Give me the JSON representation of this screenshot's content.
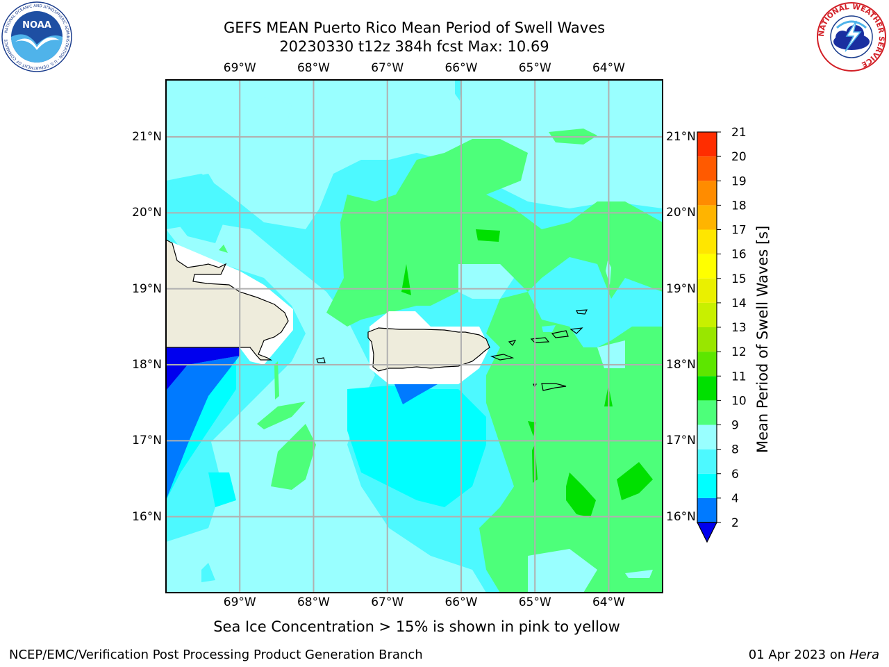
{
  "title": {
    "line1": "GEFS MEAN Puerto Rico Mean Period of Swell Waves",
    "line2": "20230330 t12z 384h fcst   Max: 10.69"
  },
  "map": {
    "lon_ticks": [
      "69°W",
      "68°W",
      "67°W",
      "66°W",
      "65°W",
      "64°W"
    ],
    "lat_ticks": [
      "21°N",
      "20°N",
      "19°N",
      "18°N",
      "17°N",
      "16°N"
    ],
    "lon_values": [
      -69,
      -68,
      -67,
      -66,
      -65,
      -64
    ],
    "lat_values": [
      21,
      20,
      19,
      18,
      17,
      16
    ],
    "lon_range": [
      -70.0,
      -63.27
    ],
    "lat_range": [
      15.0,
      21.75
    ],
    "land_color": "#eeecdc",
    "ocean_colors": {
      "2-4": "#007aff",
      "0-2": "#0000f0",
      "4-6": "#00ffff",
      "6-8": "#4df9ff",
      "8-9": "#99ffff",
      "9-10": "#4dff7a",
      "10-11": "#00e000"
    }
  },
  "colorbar": {
    "label": "Mean Period of Swell Waves [s]",
    "levels": [
      "2",
      "4",
      "6",
      "8",
      "9",
      "10",
      "11",
      "12",
      "13",
      "14",
      "15",
      "16",
      "17",
      "18",
      "19",
      "20",
      "21"
    ],
    "colors": [
      "#007aff",
      "#00ffff",
      "#4df9ff",
      "#99ffff",
      "#4dff7a",
      "#00e000",
      "#5de600",
      "#99e600",
      "#c8f000",
      "#eaf000",
      "#ffff00",
      "#ffe600",
      "#ffb400",
      "#ff8c00",
      "#ff5a00",
      "#ff2d00",
      "#ff0000"
    ],
    "under_color": "#0000ee"
  },
  "caption": "Sea Ice Concentration > 15% is shown in pink to yellow",
  "footer": {
    "left": "NCEP/EMC/Verification Post Processing Product Generation Branch",
    "right_date": "01 Apr 2023 on ",
    "right_host": "Hera"
  },
  "logos": {
    "noaa_text": "NOAA",
    "noaa_ring": "NATIONAL OCEANIC AND ATMOSPHERIC ADMINISTRATION · U.S. DEPARTMENT OF COMMERCE",
    "nws_ring": "NATIONAL WEATHER SERVICE"
  }
}
